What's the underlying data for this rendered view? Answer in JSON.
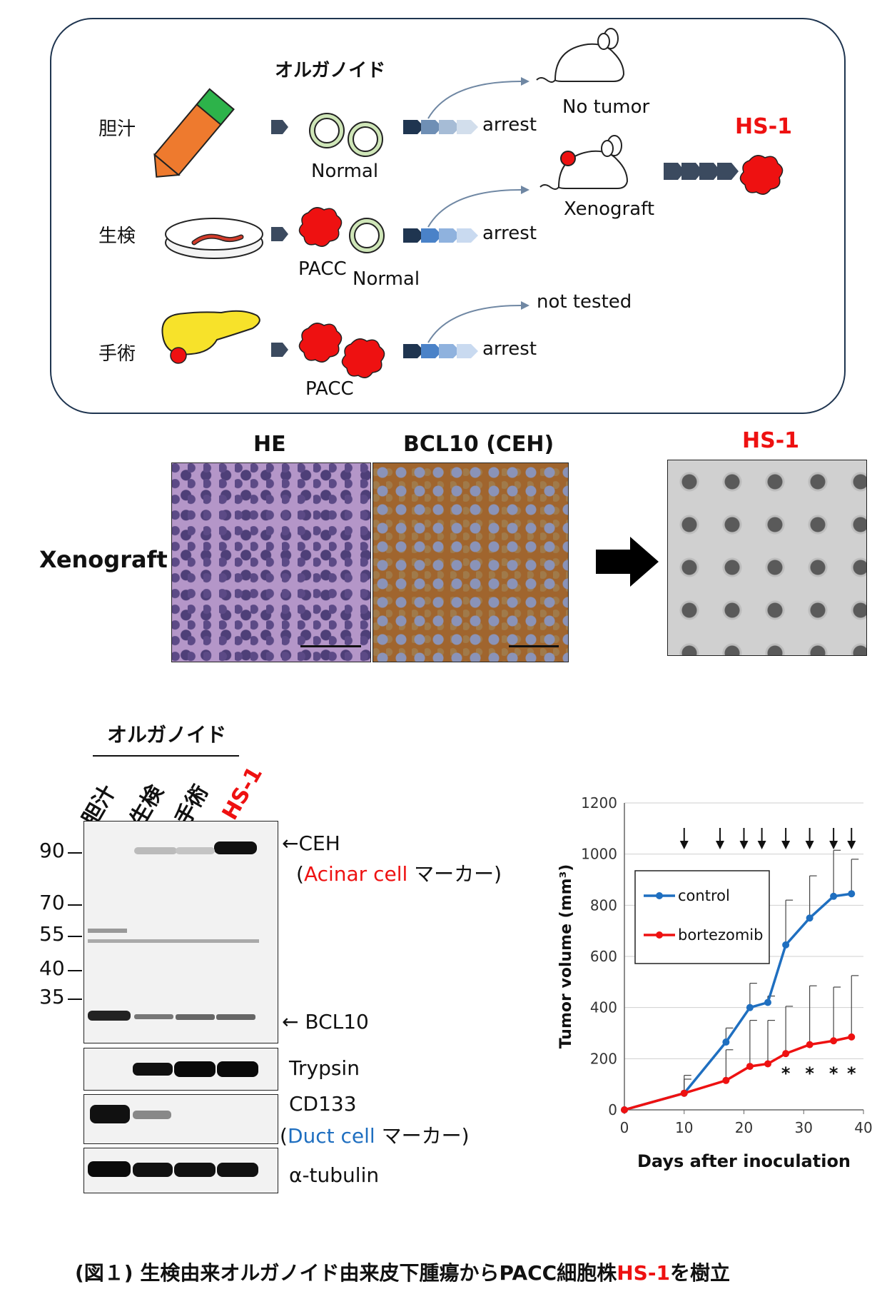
{
  "flow": {
    "organoid_title": "オルガノイド",
    "row_labels": [
      "胆汁",
      "生検",
      "手術"
    ],
    "normal": "Normal",
    "pacc": "PACC",
    "arrest": "arrest",
    "no_tumor": "No tumor",
    "xenograft": "Xenograft",
    "not_tested": "not tested",
    "hs1": "HS-1"
  },
  "histo": {
    "he_title": "HE",
    "bcl_title": "BCL10 (CEH)",
    "hs1_title": "HS-1",
    "row_label": "Xenograft"
  },
  "blot": {
    "organoid_title": "オルガノイド",
    "lanes": [
      "胆汁",
      "生検",
      "手術",
      "HS-1"
    ],
    "markers": [
      "90",
      "70",
      "55",
      "40",
      "35"
    ],
    "ceh": "←CEH",
    "acinar_open": "(",
    "acinar_red": "Acinar cell",
    "acinar_rest": " マーカー)",
    "bcl10": "← BCL10",
    "trypsin": "Trypsin",
    "cd133": "CD133",
    "duct_open": "(",
    "duct_blue": "Duct cell",
    "duct_rest": " マーカー)",
    "tubulin": "α-tubulin"
  },
  "chart_data": {
    "type": "line",
    "xlabel": "Days after inoculation",
    "ylabel": "Tumor volume (mm³)",
    "xlim": [
      0,
      40
    ],
    "ylim": [
      0,
      1200
    ],
    "xticks": [
      "0",
      "10",
      "20",
      "30",
      "40"
    ],
    "yticks": [
      "0",
      "200",
      "400",
      "600",
      "800",
      "1000",
      "1200"
    ],
    "grid": true,
    "legend": "top-left",
    "dosing_days": [
      10,
      16,
      20,
      23,
      27,
      31,
      35,
      38
    ],
    "significance_days": [
      27,
      31,
      35,
      38
    ],
    "significance_mark": "*",
    "series": [
      {
        "name": "control",
        "color": "#1f6fc0",
        "x": [
          0,
          10,
          17,
          21,
          24,
          27,
          31,
          35,
          38
        ],
        "y": [
          0,
          65,
          265,
          400,
          420,
          645,
          750,
          835,
          845
        ],
        "err": [
          0,
          70,
          55,
          95,
          25,
          175,
          165,
          180,
          135
        ]
      },
      {
        "name": "bortezomib",
        "color": "#ee1111",
        "x": [
          0,
          10,
          17,
          21,
          24,
          27,
          31,
          35,
          38
        ],
        "y": [
          0,
          65,
          115,
          170,
          180,
          220,
          255,
          270,
          285
        ],
        "err": [
          0,
          55,
          120,
          180,
          170,
          185,
          230,
          210,
          240
        ]
      }
    ]
  },
  "caption": {
    "prefix": "(図１) 生検由来オルガノイド由来皮下腫瘍からPACC細胞株",
    "red": "HS-1",
    "suffix": "を樹立"
  }
}
